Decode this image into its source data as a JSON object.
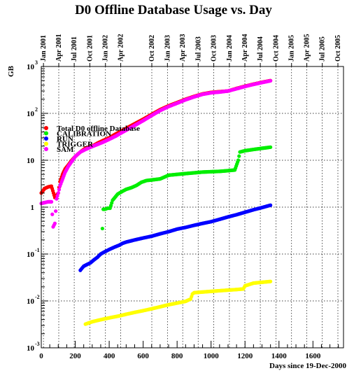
{
  "chart_data": {
    "type": "scatter",
    "title": "D0 Offline Database Usage vs. Day",
    "xlabel": "Days since 19-Dec-2000",
    "ylabel": "GB",
    "yscale": "log",
    "xlim": [
      0,
      1780
    ],
    "ylim": [
      0.001,
      1000
    ],
    "grid": true,
    "legend_placement": "upper-left",
    "x_ticks": [
      0,
      200,
      400,
      600,
      800,
      1000,
      1200,
      1400,
      1600
    ],
    "x_tick_labels": [
      "0",
      "200",
      "400",
      "600",
      "800",
      "1000",
      "1200",
      "1400",
      "1600"
    ],
    "y_ticks": [
      0.001,
      0.01,
      0.1,
      1,
      10,
      100,
      1000
    ],
    "y_tick_labels": [
      {
        "base": "10",
        "exp": "-3"
      },
      {
        "base": "10",
        "exp": "-2"
      },
      {
        "base": "10",
        "exp": "-1"
      },
      {
        "base": "1",
        "exp": ""
      },
      {
        "base": "10",
        "exp": ""
      },
      {
        "base": "10",
        "exp": "2"
      },
      {
        "base": "10",
        "exp": "3"
      }
    ],
    "top_date_axis": [
      {
        "label": "Jan 2001",
        "day": 13
      },
      {
        "label": "Apr 2001",
        "day": 103
      },
      {
        "label": "Jul 2001",
        "day": 194
      },
      {
        "label": "Oct 2001",
        "day": 286
      },
      {
        "label": "Jan 2002",
        "day": 378
      },
      {
        "label": "Apr 2002",
        "day": 468
      },
      {
        "label": "Oct 2002",
        "day": 651
      },
      {
        "label": "Jan 2003",
        "day": 743
      },
      {
        "label": "Apr 2003",
        "day": 833
      },
      {
        "label": "Jul 2003",
        "day": 924
      },
      {
        "label": "Oct 2003",
        "day": 1016
      },
      {
        "label": "Jan 2004",
        "day": 1108
      },
      {
        "label": "Apr 2004",
        "day": 1199
      },
      {
        "label": "Jul 2004",
        "day": 1290
      },
      {
        "label": "Oct 2004",
        "day": 1382
      },
      {
        "label": "Jan 2005",
        "day": 1474
      },
      {
        "label": "Apr 2005",
        "day": 1564
      },
      {
        "label": "Jul 2005",
        "day": 1655
      },
      {
        "label": "Oct 2005",
        "day": 1747
      }
    ],
    "series": [
      {
        "name": "Total D0 offline Database",
        "color": "#ff0000",
        "x": [
          0,
          20,
          40,
          60,
          80,
          90,
          100,
          110,
          125,
          140,
          160,
          180,
          200,
          220,
          240,
          260,
          280,
          300,
          330,
          360,
          400,
          430,
          460,
          500,
          550,
          600,
          650,
          700,
          750,
          800,
          850,
          900,
          950,
          1000,
          1050,
          1100,
          1150,
          1200,
          1250,
          1300,
          1350
        ],
        "y": [
          2.0,
          2.5,
          2.7,
          2.8,
          1.6,
          1.8,
          2.0,
          3.5,
          5.0,
          6.5,
          8.0,
          10,
          12,
          14,
          16,
          18,
          19,
          20,
          23,
          26,
          30,
          35,
          40,
          48,
          60,
          75,
          95,
          120,
          145,
          170,
          200,
          230,
          260,
          280,
          290,
          300,
          340,
          380,
          420,
          460,
          500
        ]
      },
      {
        "name": "CALIBRATION",
        "color": "#00ee00",
        "x": [
          360,
          365,
          375,
          390,
          405,
          420,
          450,
          480,
          500,
          530,
          560,
          590,
          620,
          650,
          700,
          750,
          800,
          850,
          900,
          950,
          1000,
          1050,
          1100,
          1140,
          1160,
          1170,
          1200,
          1250,
          1300,
          1350
        ],
        "y": [
          0.35,
          0.9,
          0.9,
          0.95,
          0.95,
          1.4,
          1.9,
          2.2,
          2.4,
          2.6,
          2.9,
          3.4,
          3.7,
          3.8,
          4.0,
          4.8,
          5.0,
          5.2,
          5.4,
          5.6,
          5.7,
          5.8,
          6.0,
          6.2,
          10,
          15,
          16,
          17,
          18,
          19
        ]
      },
      {
        "name": "RUN",
        "color": "#0000ff",
        "x": [
          230,
          240,
          250,
          270,
          290,
          310,
          330,
          350,
          370,
          400,
          430,
          460,
          480,
          500,
          550,
          600,
          650,
          700,
          750,
          800,
          850,
          900,
          950,
          1000,
          1050,
          1100,
          1150,
          1200,
          1250,
          1300,
          1350
        ],
        "y": [
          0.045,
          0.05,
          0.055,
          0.06,
          0.065,
          0.075,
          0.085,
          0.1,
          0.11,
          0.125,
          0.14,
          0.155,
          0.17,
          0.18,
          0.2,
          0.22,
          0.24,
          0.27,
          0.3,
          0.34,
          0.37,
          0.41,
          0.45,
          0.49,
          0.55,
          0.62,
          0.69,
          0.78,
          0.88,
          0.98,
          1.1
        ]
      },
      {
        "name": "TRIGGER",
        "color": "#ffff00",
        "x": [
          260,
          280,
          300,
          340,
          380,
          420,
          460,
          500,
          550,
          600,
          650,
          700,
          750,
          800,
          850,
          880,
          890,
          900,
          950,
          1000,
          1050,
          1100,
          1150,
          1190,
          1200,
          1250,
          1300,
          1350
        ],
        "y": [
          0.0032,
          0.0034,
          0.0036,
          0.0039,
          0.0042,
          0.0045,
          0.0048,
          0.0052,
          0.0057,
          0.0062,
          0.0068,
          0.0075,
          0.0083,
          0.009,
          0.0098,
          0.011,
          0.014,
          0.015,
          0.0155,
          0.016,
          0.0165,
          0.017,
          0.0175,
          0.018,
          0.021,
          0.024,
          0.025,
          0.026
        ]
      },
      {
        "name": "SAM",
        "color": "#ff00ff",
        "x": [
          0,
          20,
          40,
          60,
          70,
          80,
          90,
          100,
          110,
          120,
          140,
          160,
          180,
          200,
          230,
          260,
          290,
          320,
          360,
          400,
          440,
          480,
          520,
          560,
          600,
          650,
          700,
          750,
          800,
          850,
          900,
          950,
          1000,
          1050,
          1100,
          1150,
          1200,
          1250,
          1300,
          1350
        ],
        "y": [
          1.2,
          1.25,
          1.3,
          1.3,
          0.38,
          0.45,
          1.5,
          2.0,
          2.8,
          3.5,
          5.5,
          7.5,
          9.5,
          12,
          15,
          17,
          19,
          21,
          24,
          28,
          33,
          40,
          48,
          58,
          70,
          90,
          115,
          140,
          165,
          195,
          225,
          255,
          275,
          285,
          300,
          335,
          375,
          415,
          455,
          495
        ]
      }
    ]
  }
}
